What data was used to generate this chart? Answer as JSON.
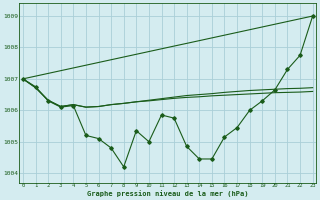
{
  "xlabel": "Graphe pression niveau de la mer (hPa)",
  "background_color": "#d4ecf0",
  "grid_color": "#aacfd8",
  "line_color": "#1a5c1a",
  "ylim": [
    1003.7,
    1009.4
  ],
  "yticks": [
    1004,
    1005,
    1006,
    1007,
    1008,
    1009
  ],
  "s1": [
    1007.0,
    1007.087,
    1007.174,
    1007.261,
    1007.348,
    1007.435,
    1007.522,
    1007.609,
    1007.696,
    1007.783,
    1007.87,
    1007.957,
    1008.044,
    1008.13,
    1008.217,
    1008.304,
    1008.391,
    1008.478,
    1008.565,
    1008.652,
    1008.739,
    1008.826,
    1008.913,
    1009.0
  ],
  "s2": [
    1007.0,
    1006.72,
    1006.32,
    1006.12,
    1006.18,
    1006.1,
    1006.12,
    1006.18,
    1006.22,
    1006.27,
    1006.32,
    1006.37,
    1006.42,
    1006.47,
    1006.5,
    1006.53,
    1006.57,
    1006.6,
    1006.63,
    1006.65,
    1006.67,
    1006.69,
    1006.7,
    1006.72
  ],
  "s3": [
    1007.0,
    1006.72,
    1006.32,
    1006.12,
    1006.18,
    1006.1,
    1006.12,
    1006.18,
    1006.22,
    1006.27,
    1006.3,
    1006.34,
    1006.38,
    1006.41,
    1006.43,
    1006.46,
    1006.48,
    1006.5,
    1006.52,
    1006.54,
    1006.56,
    1006.57,
    1006.58,
    1006.6
  ],
  "s4": [
    1007.0,
    1006.75,
    1006.3,
    1006.1,
    1006.15,
    1005.2,
    1005.1,
    1004.8,
    1004.2,
    1005.35,
    1005.0,
    1005.85,
    1005.75,
    1004.85,
    1004.45,
    1004.45,
    1005.15,
    1005.45,
    1006.0,
    1006.3,
    1006.65,
    1007.3,
    1007.75,
    1009.0
  ]
}
